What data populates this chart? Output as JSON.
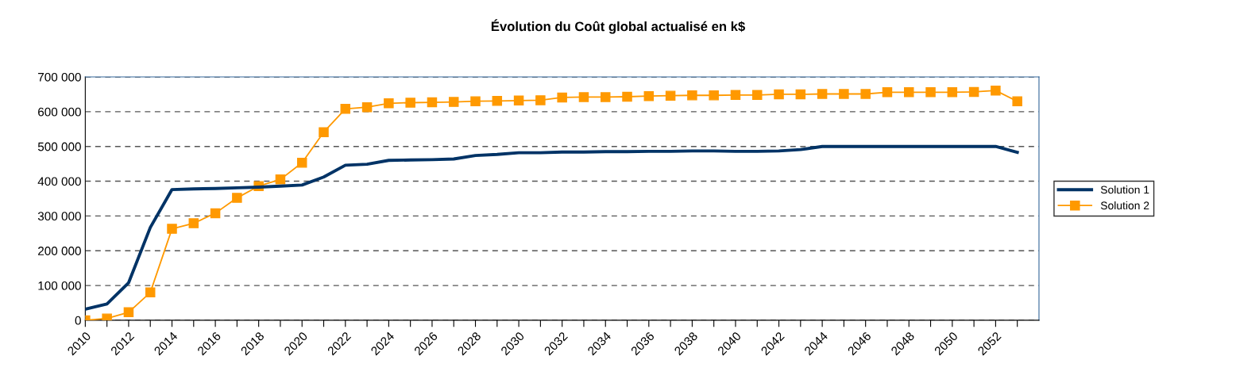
{
  "chart_data": {
    "type": "line",
    "title": "Évolution du Coût global actualisé en k$",
    "categories": [
      "2010",
      null,
      "2012",
      null,
      "2014",
      null,
      "2016",
      null,
      "2018",
      null,
      "2020",
      null,
      "2022",
      null,
      "2024",
      null,
      "2026",
      null,
      "2028",
      null,
      "2030",
      null,
      "2032",
      null,
      "2034",
      null,
      "2036",
      null,
      "2038",
      null,
      "2040",
      null,
      "2042",
      null,
      "2044",
      null,
      "2046",
      null,
      "2048",
      null,
      "2050",
      null,
      "2052",
      null
    ],
    "series": [
      {
        "name": "Solution 1",
        "color": "#003366",
        "marker": "none",
        "values": [
          32000,
          47000,
          108000,
          267000,
          376000,
          378000,
          379000,
          381000,
          383000,
          386000,
          389000,
          412000,
          446000,
          449000,
          460000,
          461000,
          462000,
          464000,
          474000,
          477000,
          482000,
          482000,
          484000,
          484000,
          485000,
          485000,
          486000,
          486000,
          487000,
          487000,
          486000,
          486000,
          487000,
          491000,
          500000,
          500000,
          500000,
          500000,
          500000,
          500000,
          500000,
          500000,
          500000,
          483000
        ]
      },
      {
        "name": "Solution 2",
        "color": "#ff9900",
        "marker": "square",
        "values": [
          0,
          5000,
          23000,
          80000,
          263000,
          279000,
          308000,
          352000,
          386000,
          405000,
          453000,
          541000,
          608000,
          613000,
          624000,
          626000,
          627000,
          628000,
          630000,
          631000,
          632000,
          633000,
          641000,
          642000,
          642000,
          643000,
          645000,
          646000,
          647000,
          647000,
          648000,
          648000,
          650000,
          650000,
          651000,
          651000,
          651000,
          656000,
          656000,
          656000,
          656000,
          657000,
          661000,
          630000
        ]
      }
    ],
    "ylim": [
      0,
      700000
    ],
    "yticks": [
      {
        "value": 0,
        "label": "0"
      },
      {
        "value": 100000,
        "label": "100 000"
      },
      {
        "value": 200000,
        "label": "200 000"
      },
      {
        "value": 300000,
        "label": "300 000"
      },
      {
        "value": 400000,
        "label": "400 000"
      },
      {
        "value": 500000,
        "label": "500 000"
      },
      {
        "value": 600000,
        "label": "600 000"
      },
      {
        "value": 700000,
        "label": "700 000"
      }
    ],
    "grid": "y",
    "line_style": "solid",
    "legend": "right"
  }
}
